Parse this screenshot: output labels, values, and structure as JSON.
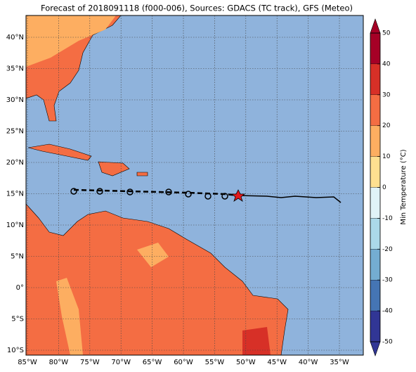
{
  "title": "Forecast of 2018091118 (f000-006), Sources: GDACS (TC track), GFS (Meteo)",
  "map": {
    "lat_labels": [
      "40°N",
      "35°N",
      "30°N",
      "25°N",
      "20°N",
      "15°N",
      "10°N",
      "5°N",
      "0°",
      "5°S",
      "10°S"
    ],
    "lon_labels": [
      "85°W",
      "80°W",
      "75°W",
      "70°W",
      "65°W",
      "60°W",
      "55°W",
      "50°W",
      "45°W",
      "40°W",
      "35°W"
    ]
  },
  "colorbar": {
    "label": "Min Temperature (°C)",
    "ticks": [
      50,
      40,
      30,
      20,
      10,
      0,
      -10,
      -20,
      -30,
      -40,
      -50
    ],
    "colors": [
      "#a50026",
      "#d73027",
      "#f46d43",
      "#fdae61",
      "#fee090",
      "#e0f3f8",
      "#abd9e9",
      "#74add1",
      "#4575b4",
      "#313695"
    ]
  }
}
